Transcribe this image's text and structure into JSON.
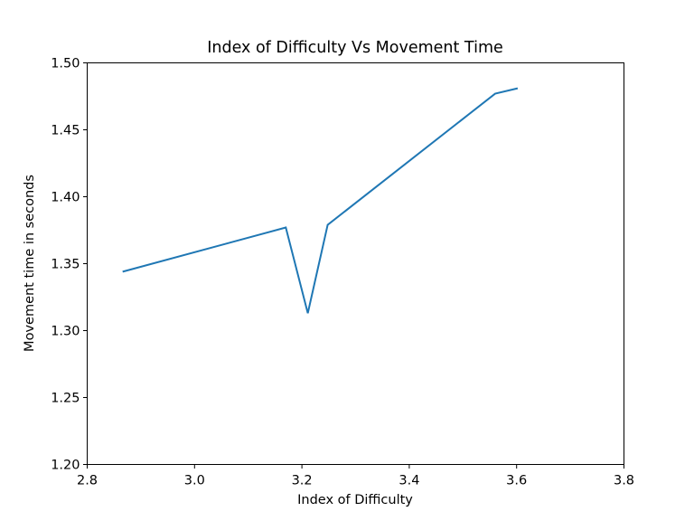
{
  "chart_data": {
    "type": "line",
    "title": "Index of Difficulty Vs Movement Time",
    "xlabel": "Index of Difficulty",
    "ylabel": "Movement time in seconds",
    "xlim": [
      2.8,
      3.8
    ],
    "ylim": [
      1.2,
      1.5
    ],
    "xticks": [
      "2.8",
      "3.0",
      "3.2",
      "3.4",
      "3.6",
      "3.8"
    ],
    "yticks": [
      "1.20",
      "1.25",
      "1.30",
      "1.35",
      "1.40",
      "1.45",
      "1.50"
    ],
    "grid": false,
    "series": [
      {
        "color": "#1f77b4",
        "x": [
          2.866,
          3.17,
          3.211,
          3.248,
          3.56,
          3.602
        ],
        "y": [
          1.344,
          1.377,
          1.313,
          1.379,
          1.477,
          1.481
        ]
      }
    ]
  }
}
